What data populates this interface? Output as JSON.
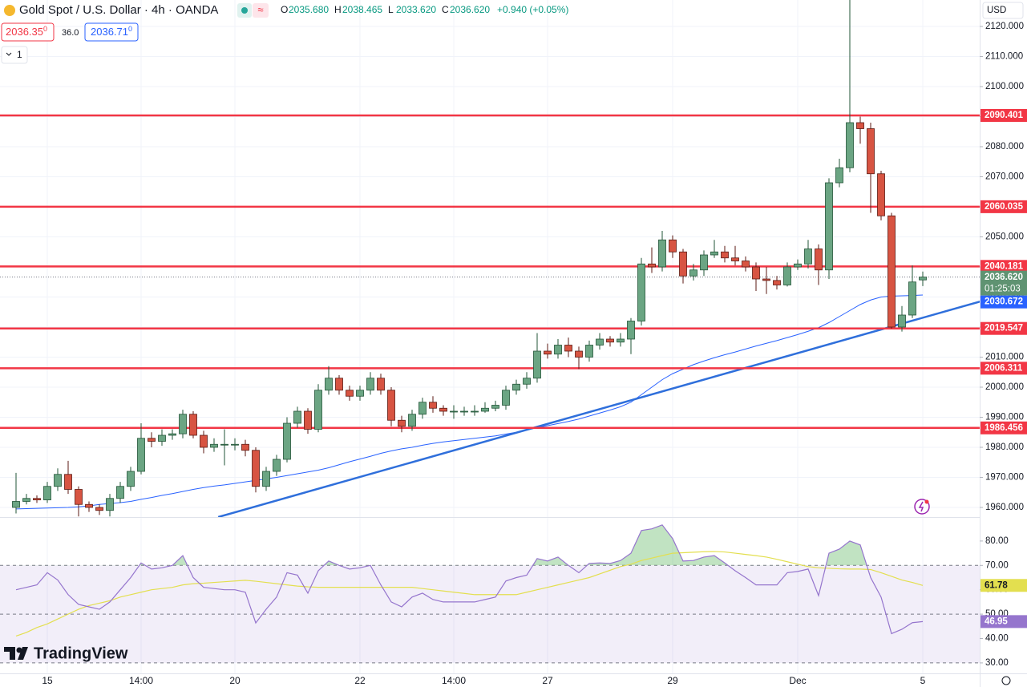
{
  "header": {
    "title": "Gold Spot / U.S. Dollar · 4h · OANDA",
    "ohlc": [
      [
        "O",
        "2035.680"
      ],
      [
        "H",
        "2038.465"
      ],
      [
        "L",
        "2033.620"
      ],
      [
        "C",
        "2036.620"
      ]
    ],
    "change": "+0.940 (+0.05%)",
    "sell": "2036.35",
    "sell_small": "0",
    "spread": "36.0",
    "buy": "2036.71",
    "buy_small": "0",
    "indicators": "1",
    "currency": "USD",
    "watermark": "TradingView",
    "countdown": "01:25:03"
  },
  "chart_data": [
    {
      "type": "candlestick",
      "categories": [
        null,
        null,
        null,
        "15",
        null,
        null,
        null,
        null,
        null,
        null,
        null,
        null,
        "14:00",
        null,
        null,
        null,
        null,
        null,
        null,
        null,
        null,
        "20",
        null,
        null,
        null,
        null,
        null,
        null,
        null,
        null,
        null,
        null,
        null,
        "22",
        null,
        null,
        null,
        null,
        null,
        null,
        null,
        null,
        "14:00",
        null,
        null,
        null,
        null,
        null,
        null,
        null,
        null,
        "27",
        null,
        null,
        null,
        null,
        null,
        null,
        null,
        null,
        null,
        null,
        null,
        "29",
        null,
        null,
        null,
        null,
        null,
        null,
        null,
        null,
        null,
        null,
        null,
        "Dec",
        null,
        null,
        null,
        null,
        null,
        null,
        null,
        null,
        null,
        null,
        null,
        "5"
      ],
      "open": [
        1960,
        1962,
        1963,
        1962.5,
        1967,
        1971,
        1966,
        1961,
        1960,
        1959,
        1963,
        1967,
        1972,
        1983,
        1982,
        1984,
        1984.5,
        1991,
        1984,
        1980,
        1981,
        1981,
        1981,
        1979,
        1967,
        1972,
        1976,
        1988,
        1992,
        1986,
        1999,
        2003,
        1999,
        1997,
        1999,
        2003,
        1999,
        1989,
        1987,
        1991,
        1995,
        1993,
        1992,
        1992,
        1992,
        1992,
        1993,
        1994,
        1999,
        2001,
        2003,
        2012,
        2011,
        2014,
        2012,
        2010,
        2014,
        2016,
        2015,
        2016,
        2022,
        2041,
        2040,
        2049,
        2045,
        2037,
        2039,
        2044,
        2045,
        2043,
        2042,
        2040,
        2036,
        2035.5,
        2034,
        2040,
        2041,
        2046,
        2039,
        2068,
        2073,
        2088,
        2086,
        2071,
        2057,
        2020,
        2024,
        2035.68
      ],
      "high": [
        1971.5,
        1964.5,
        1964,
        1968.5,
        1973,
        1975.5,
        1967,
        1962,
        1961,
        1964.5,
        1968.5,
        1973.5,
        1988,
        1985,
        1986,
        1986,
        1992.5,
        1992,
        1985.5,
        1983,
        1986,
        1983,
        1982.5,
        1980,
        1973.5,
        1977.5,
        1990,
        1993.5,
        1993,
        2001,
        2007,
        2004,
        2000.5,
        2000.5,
        2005,
        2004.5,
        2000,
        1990.5,
        1992.5,
        1996.5,
        1997,
        1994,
        1994,
        1993.5,
        1994,
        1995,
        1995.5,
        2000.5,
        2002.5,
        2005,
        2018,
        2014.5,
        2016,
        2016.5,
        2013.5,
        2015.5,
        2018,
        2017,
        2018,
        2023,
        2043,
        2046.5,
        2052,
        2050.5,
        2046,
        2041,
        2045.5,
        2049,
        2047,
        2047,
        2043.5,
        2041.5,
        2040,
        2037,
        2041.5,
        2042.5,
        2049,
        2047.5,
        2069.5,
        2076,
        2135,
        2090,
        2088,
        2072,
        2058,
        2027,
        2040.5,
        2038.465
      ],
      "low": [
        1958,
        1961,
        1961.5,
        1961.5,
        1965.5,
        1964.5,
        1957,
        1958.5,
        1957.5,
        1957,
        1961.5,
        1965.5,
        1971,
        1980,
        1980.5,
        1982.5,
        1983,
        1983,
        1978,
        1978.5,
        1974,
        1979,
        1977,
        1965,
        1965.5,
        1970.5,
        1975,
        1986.5,
        1984.5,
        1985,
        1997.5,
        1997.5,
        1995.5,
        1995.5,
        1997.5,
        1997.5,
        1987,
        1985,
        1985.5,
        1989.5,
        1991.5,
        1990.5,
        1989.5,
        1990.5,
        1990.5,
        1991.5,
        1992,
        1992.5,
        1997.5,
        1999.5,
        2001.5,
        2009.5,
        2009.5,
        2010,
        2006,
        2008.5,
        2012.5,
        2013.5,
        2013.5,
        2011,
        2020.5,
        2038,
        2038.5,
        2043,
        2034.5,
        2035.5,
        2037,
        2043,
        2041.5,
        2040.5,
        2038.5,
        2032,
        2031,
        2032.5,
        2033.5,
        2039,
        2039.5,
        2034,
        2036,
        2066.5,
        2071.5,
        2081,
        2058,
        2055.5,
        2019.5,
        2018.5,
        2023,
        2033.62
      ],
      "close": [
        1962,
        1963,
        1962.5,
        1967,
        1971,
        1966,
        1961,
        1960,
        1959,
        1963,
        1967,
        1972,
        1983,
        1982,
        1984,
        1984.5,
        1991,
        1984,
        1980,
        1981,
        1981,
        1981,
        1979,
        1967,
        1972,
        1976,
        1988,
        1992,
        1986,
        1999,
        2003,
        1999,
        1997,
        1999,
        2003,
        1999,
        1989,
        1987,
        1991,
        1995,
        1993,
        1992,
        1992,
        1992,
        1992,
        1993,
        1994,
        1999,
        2001,
        2003,
        2012,
        2011,
        2014,
        2012,
        2010,
        2014,
        2016,
        2015,
        2016,
        2022,
        2041,
        2040,
        2049,
        2045,
        2037,
        2039,
        2044,
        2045,
        2043,
        2042,
        2040,
        2036,
        2035.5,
        2034,
        2040,
        2041,
        2046,
        2039,
        2068,
        2073,
        2088,
        2086,
        2071,
        2057,
        2020,
        2024,
        2035,
        2036.62
      ],
      "up_color": "#6ba583",
      "down_color": "#d75442",
      "ma": {
        "color": "#2962ff",
        "values": [
          1959.5,
          1959.6,
          1959.7,
          1959.8,
          1959.9,
          1960,
          1960.2,
          1960.5,
          1961,
          1961.3,
          1961.6,
          1962,
          1962.7,
          1963.3,
          1964,
          1964.6,
          1965.3,
          1966,
          1966.6,
          1967.1,
          1967.5,
          1968,
          1968.5,
          1969,
          1969.5,
          1970,
          1970.6,
          1971.2,
          1971.8,
          1972.4,
          1973.2,
          1974.2,
          1975.2,
          1976.1,
          1977,
          1978,
          1978.8,
          1979.5,
          1980,
          1980.7,
          1981.3,
          1981.8,
          1982.2,
          1982.6,
          1983,
          1983.4,
          1983.8,
          1984.4,
          1985,
          1985.8,
          1986.5,
          1987.2,
          1987.9,
          1988.6,
          1989.4,
          1990.4,
          1991.4,
          1992.4,
          1993.5,
          1995,
          1997.5,
          2000,
          2002.5,
          2004.5,
          2006,
          2007.5,
          2008.7,
          2009.8,
          2010.8,
          2011.7,
          2012.7,
          2013.7,
          2014.6,
          2015.5,
          2016.5,
          2017.5,
          2018.6,
          2019.8,
          2021.5,
          2023.5,
          2025.5,
          2027.5,
          2029,
          2030,
          2030.3,
          2030.4,
          2030.5,
          2030.672
        ]
      },
      "trendline": {
        "color": "#2f6fdb",
        "x": [
          19.4,
          92.5
        ],
        "y": [
          1956.8,
          2028.5
        ]
      },
      "levels": [
        2090.401,
        2060.035,
        2040.181,
        2019.547,
        2006.311,
        1986.456
      ],
      "level_color": "#f23645",
      "last_price": {
        "value": 2036.62,
        "label": "2036.620"
      },
      "ylim": [
        1956.8,
        2128.8
      ],
      "yticks": [
        {
          "value": 1960,
          "label": "1960.000"
        },
        {
          "value": 1970,
          "label": "1970.000"
        },
        {
          "value": 1980,
          "label": "1980.000"
        },
        {
          "value": 1990,
          "label": "1990.000"
        },
        {
          "value": 2000,
          "label": "2000.000"
        },
        {
          "value": 2010,
          "label": "2010.000"
        },
        {
          "value": 2020,
          "label": "2020.000"
        },
        {
          "value": 2030,
          "label": "2030.000"
        },
        {
          "value": 2040,
          "label": "2040.000"
        },
        {
          "value": 2050,
          "label": "2050.000"
        },
        {
          "value": 2060,
          "label": "2060.000"
        },
        {
          "value": 2070,
          "label": "2070.000"
        },
        {
          "value": 2080,
          "label": "2080.000"
        },
        {
          "value": 2090,
          "label": "2090.000"
        },
        {
          "value": 2100,
          "label": "2100.000"
        },
        {
          "value": 2110,
          "label": "2110.000"
        },
        {
          "value": 2120,
          "label": "2120.000"
        }
      ],
      "grid": true
    },
    {
      "type": "line",
      "series": [
        {
          "color": "#9575cd",
          "values": [
            60,
            61,
            62,
            67,
            64,
            58,
            54,
            53,
            52,
            55,
            60,
            65,
            71,
            68.5,
            69,
            70,
            74,
            65,
            61,
            60.5,
            60,
            60,
            59,
            46.4,
            52,
            57,
            67,
            66,
            58.6,
            67.8,
            71.8,
            70,
            68.5,
            69,
            70,
            62,
            55,
            53,
            57,
            58.6,
            56,
            55,
            55,
            55,
            55,
            56,
            57,
            63.6,
            65,
            66,
            72.8,
            71.8,
            73.4,
            70,
            67,
            70.8,
            71,
            70.8,
            72,
            75,
            84.3,
            85,
            86.6,
            81,
            71.8,
            72,
            73.4,
            74,
            71,
            67.8,
            65,
            62,
            62,
            62,
            67,
            67.5,
            68.5,
            57.6,
            75,
            76.7,
            80,
            78.4,
            65,
            57,
            42,
            43.8,
            46.5,
            46.95
          ]
        },
        {
          "color": "#e3df4f",
          "values": [
            41,
            42.5,
            44.5,
            46,
            48,
            50,
            52,
            53.5,
            54.5,
            55.5,
            57,
            58,
            59,
            60,
            60.5,
            61,
            62,
            62.5,
            62.7,
            63,
            63.3,
            63.6,
            63.9,
            63.5,
            63,
            62.5,
            62,
            61.5,
            61.2,
            61,
            61,
            61,
            61,
            61,
            61,
            61,
            61,
            61,
            61,
            60.5,
            60,
            59.5,
            59,
            58.5,
            58,
            58,
            58,
            58,
            58,
            59,
            60,
            61,
            62,
            63,
            64,
            65,
            66.5,
            68,
            69.5,
            70.5,
            72,
            73,
            74,
            75,
            75.2,
            75.4,
            75.6,
            75.7,
            75.5,
            75,
            74.5,
            74,
            73.4,
            72.5,
            71.5,
            70.5,
            69.5,
            69,
            68.8,
            68.6,
            68.5,
            68.5,
            68.3,
            67,
            65.5,
            64,
            63,
            61.78
          ]
        }
      ],
      "band": [
        30,
        70
      ],
      "midline": 50,
      "ylim": [
        25.7,
        89.5
      ],
      "yticks": [
        {
          "value": 30,
          "label": "30.00"
        },
        {
          "value": 40,
          "label": "40.00"
        },
        {
          "value": 50,
          "label": "50.00"
        },
        {
          "value": 60,
          "label": "60.00"
        },
        {
          "value": 70,
          "label": "70.00"
        },
        {
          "value": 80,
          "label": "80.00"
        }
      ]
    }
  ]
}
